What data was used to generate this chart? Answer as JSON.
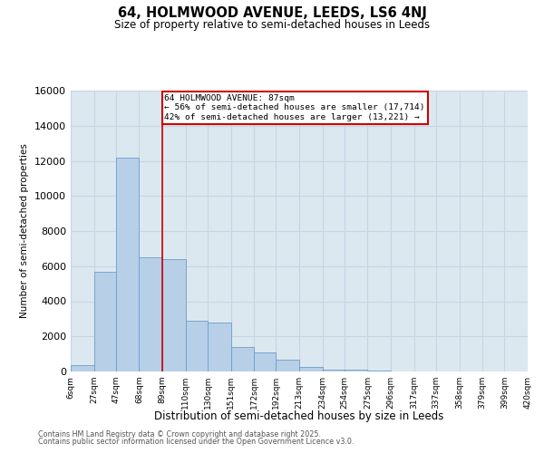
{
  "title1": "64, HOLMWOOD AVENUE, LEEDS, LS6 4NJ",
  "title2": "Size of property relative to semi-detached houses in Leeds",
  "xlabel": "Distribution of semi-detached houses by size in Leeds",
  "ylabel": "Number of semi-detached properties",
  "property_label": "64 HOLMWOOD AVENUE: 87sqm",
  "pct_smaller": 56,
  "pct_larger": 42,
  "n_smaller": 17714,
  "n_larger": 13221,
  "bin_edges": [
    6,
    27,
    47,
    68,
    89,
    110,
    130,
    151,
    172,
    192,
    213,
    234,
    254,
    275,
    296,
    317,
    337,
    358,
    379,
    399,
    420
  ],
  "bin_labels": [
    "6sqm",
    "27sqm",
    "47sqm",
    "68sqm",
    "89sqm",
    "110sqm",
    "130sqm",
    "151sqm",
    "172sqm",
    "192sqm",
    "213sqm",
    "234sqm",
    "254sqm",
    "275sqm",
    "296sqm",
    "317sqm",
    "337sqm",
    "358sqm",
    "379sqm",
    "399sqm",
    "420sqm"
  ],
  "bar_heights": [
    350,
    5700,
    12200,
    6500,
    6400,
    2900,
    2800,
    1400,
    1100,
    650,
    280,
    120,
    80,
    40,
    15,
    8,
    4,
    2,
    1,
    1
  ],
  "bar_color": "#b8cfe8",
  "bar_edge_color": "#6b9ec8",
  "vline_color": "#cc0000",
  "vline_x": 89,
  "annotation_box_color": "#cc0000",
  "ylim": [
    0,
    16000
  ],
  "yticks": [
    0,
    2000,
    4000,
    6000,
    8000,
    10000,
    12000,
    14000,
    16000
  ],
  "grid_color": "#c8d4e0",
  "bg_color": "#dce8f0",
  "footer1": "Contains HM Land Registry data © Crown copyright and database right 2025.",
  "footer2": "Contains public sector information licensed under the Open Government Licence v3.0."
}
